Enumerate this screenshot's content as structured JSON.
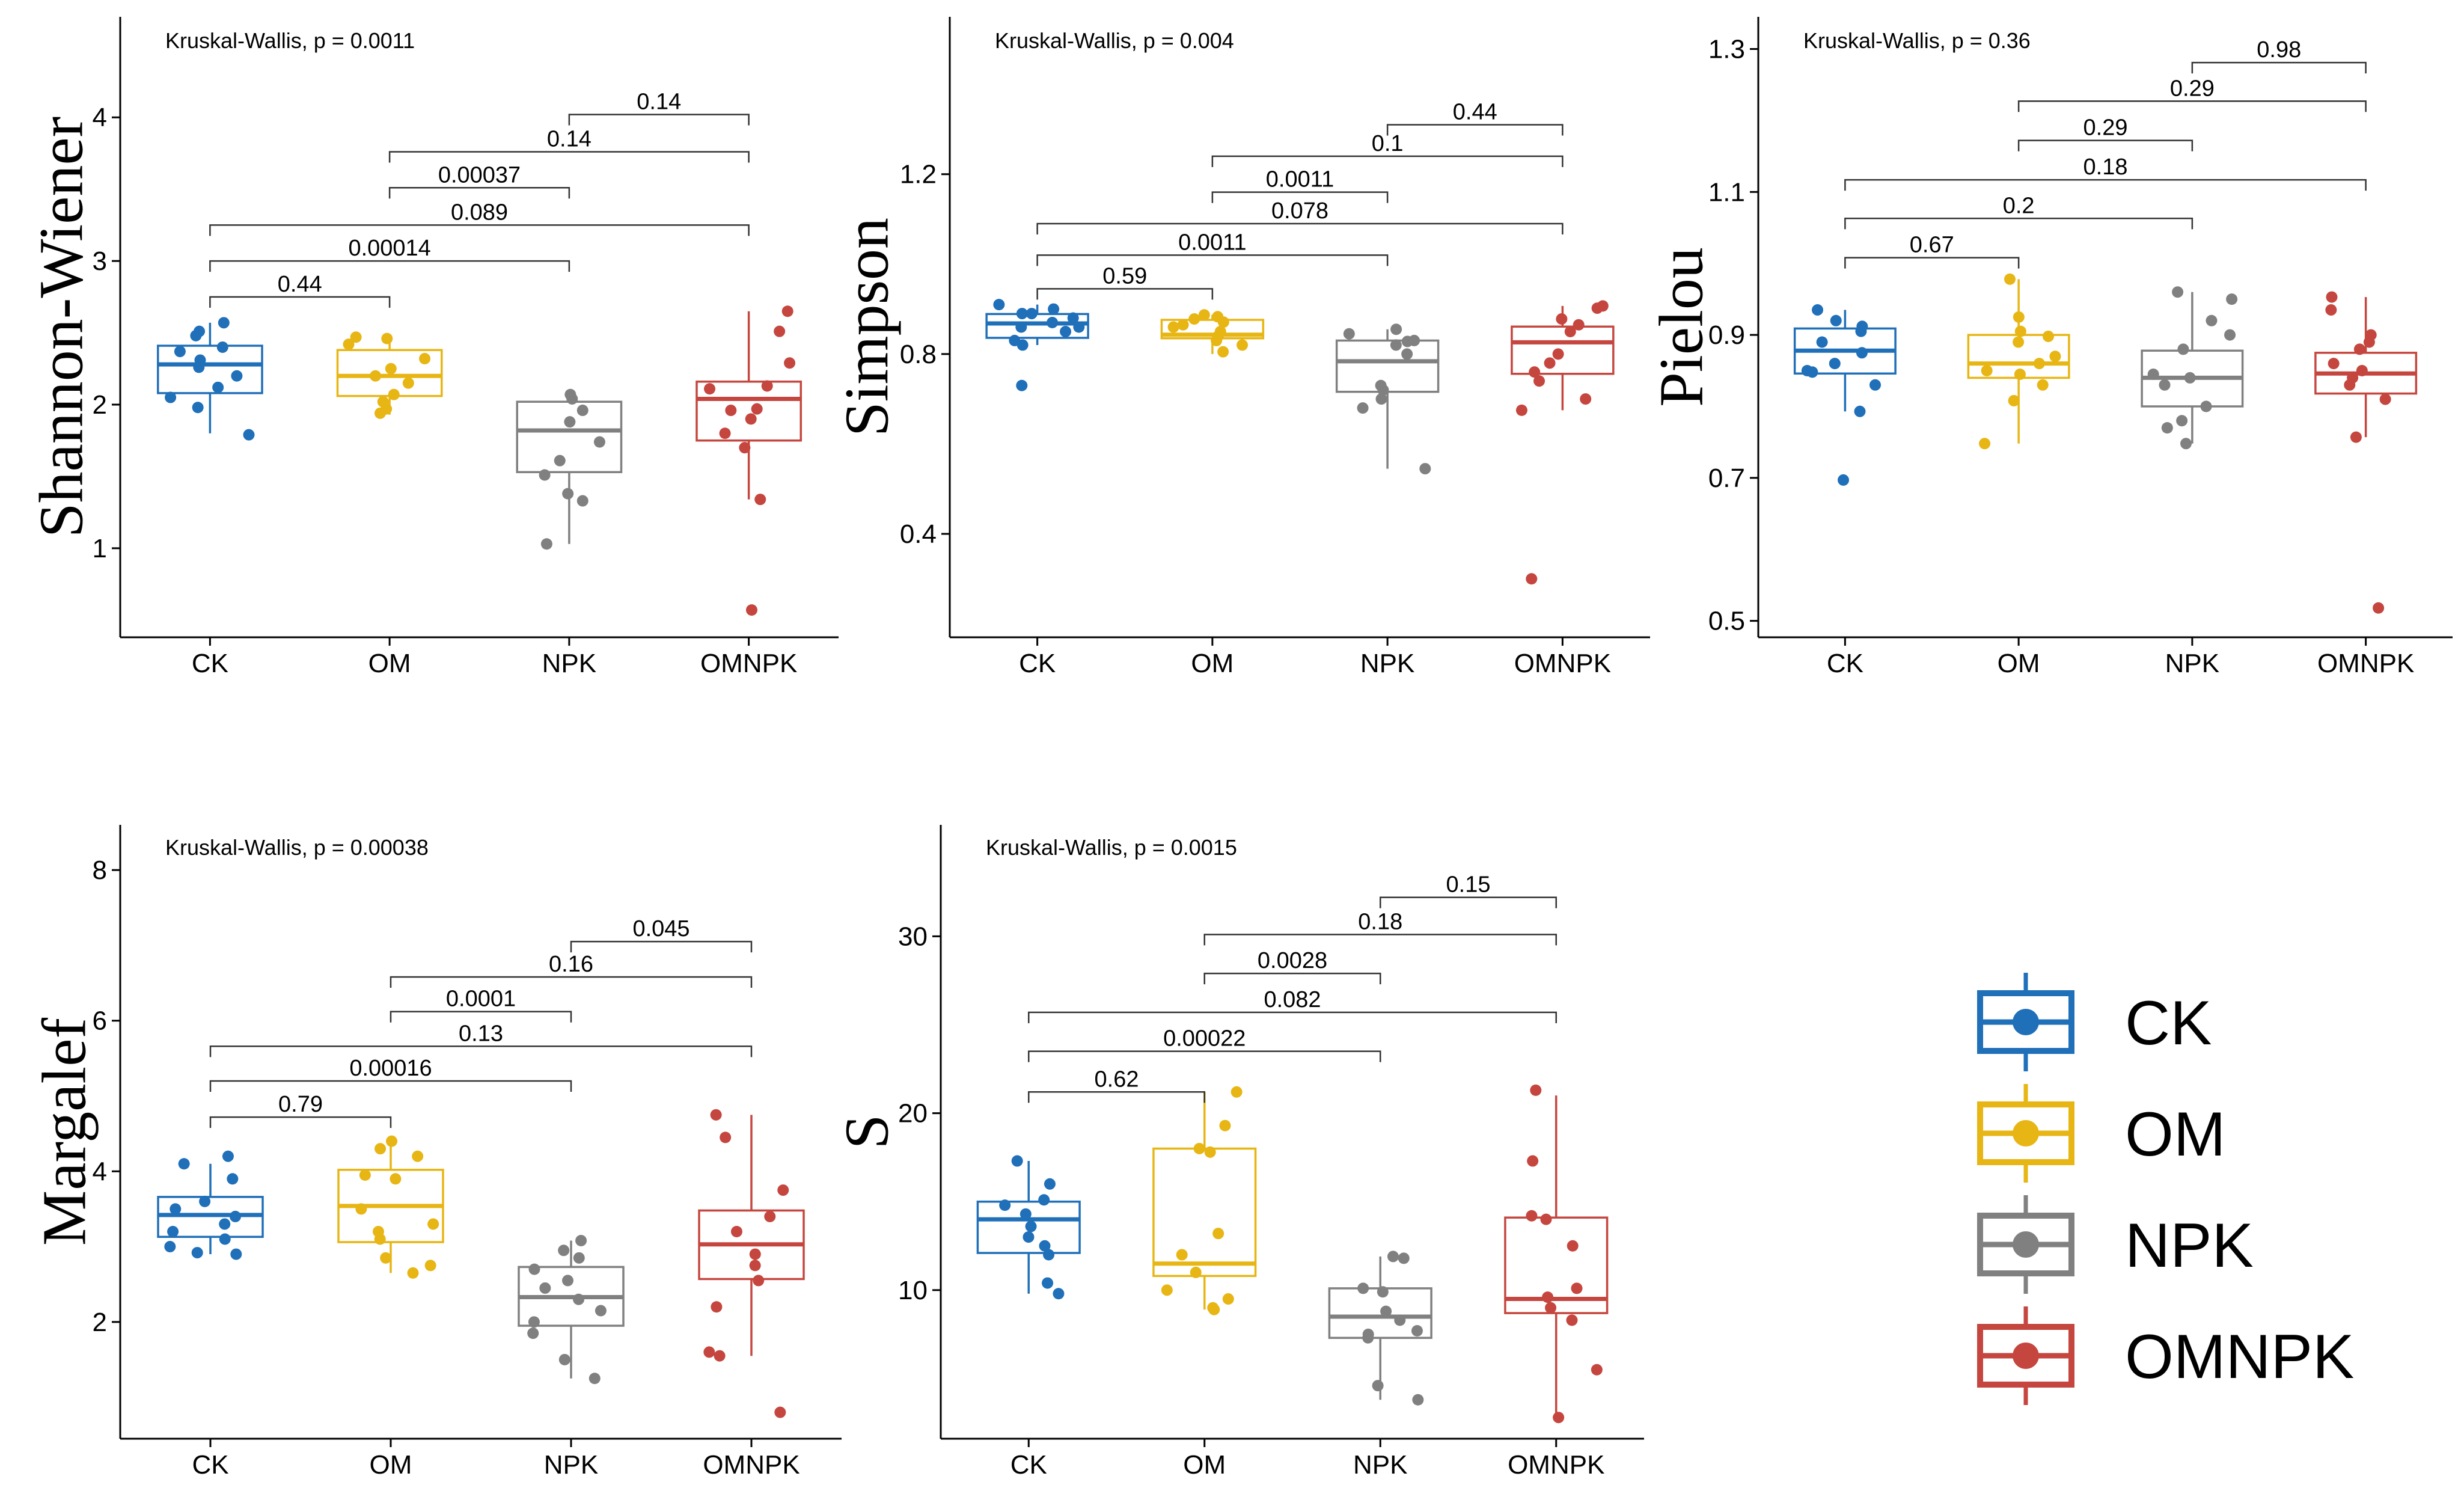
{
  "groups": [
    "CK",
    "OM",
    "NPK",
    "OMNPK"
  ],
  "group_colors": {
    "CK": "#1f6fb9",
    "OM": "#e7b614",
    "NPK": "#808080",
    "OMNPK": "#c5463f"
  },
  "legend": {
    "items": [
      "CK",
      "OM",
      "NPK",
      "OMNPK"
    ]
  },
  "chart_data": [
    {
      "id": "shannon",
      "type": "box",
      "ylabel": "Shannon-Wiener",
      "kruskal": "Kruskal-Wallis, p = 0.0011",
      "ylim": [
        0.38,
        4.7
      ],
      "yticks": [
        1,
        2,
        3,
        4
      ],
      "ytick_labels": [
        "1",
        "2",
        "3",
        "4"
      ],
      "boxes": [
        {
          "group": "CK",
          "q1": 2.08,
          "median": 2.28,
          "q3": 2.41,
          "whisker_low": 1.8,
          "whisker_high": 2.57,
          "points": [
            2.57,
            2.51,
            2.48,
            2.4,
            2.37,
            2.31,
            2.26,
            2.2,
            2.12,
            2.05,
            1.98,
            1.79
          ]
        },
        {
          "group": "OM",
          "q1": 2.06,
          "median": 2.2,
          "q3": 2.38,
          "whisker_low": 1.93,
          "whisker_high": 2.48,
          "points": [
            2.47,
            2.46,
            2.42,
            2.32,
            2.25,
            2.2,
            2.15,
            2.07,
            2.02,
            1.97,
            1.94
          ]
        },
        {
          "group": "NPK",
          "q1": 1.53,
          "median": 1.82,
          "q3": 2.02,
          "whisker_low": 1.03,
          "whisker_high": 2.07,
          "points": [
            2.07,
            2.04,
            1.96,
            1.88,
            1.74,
            1.61,
            1.51,
            1.38,
            1.33,
            1.03
          ]
        },
        {
          "group": "OMNPK",
          "q1": 1.75,
          "median": 2.04,
          "q3": 2.16,
          "whisker_low": 1.34,
          "whisker_high": 2.65,
          "points": [
            2.65,
            2.51,
            2.29,
            2.13,
            2.11,
            1.97,
            1.96,
            1.9,
            1.8,
            1.7,
            1.34,
            0.57
          ]
        }
      ],
      "comparisons": [
        {
          "from": "NPK",
          "to": "OMNPK",
          "y": 4.02,
          "label": "0.14"
        },
        {
          "from": "OM",
          "to": "OMNPK",
          "y": 3.76,
          "label": "0.14"
        },
        {
          "from": "OM",
          "to": "NPK",
          "y": 3.51,
          "label": "0.00037"
        },
        {
          "from": "CK",
          "to": "OMNPK",
          "y": 3.25,
          "label": "0.089"
        },
        {
          "from": "CK",
          "to": "NPK",
          "y": 3.0,
          "label": "0.00014"
        },
        {
          "from": "CK",
          "to": "OM",
          "y": 2.75,
          "label": "0.44"
        }
      ]
    },
    {
      "id": "simpson",
      "type": "box",
      "ylabel": "Simpson",
      "kruskal": "Kruskal-Wallis, p = 0.004",
      "ylim": [
        0.17,
        1.55
      ],
      "yticks": [
        0.4,
        0.8,
        1.2
      ],
      "ytick_labels": [
        "0.4",
        "0.8",
        "1.2"
      ],
      "boxes": [
        {
          "group": "CK",
          "q1": 0.836,
          "median": 0.868,
          "q3": 0.889,
          "whisker_low": 0.82,
          "whisker_high": 0.91,
          "points": [
            0.91,
            0.9,
            0.89,
            0.89,
            0.88,
            0.87,
            0.86,
            0.86,
            0.85,
            0.83,
            0.82,
            0.73
          ]
        },
        {
          "group": "OM",
          "q1": 0.835,
          "median": 0.843,
          "q3": 0.876,
          "whisker_low": 0.8,
          "whisker_high": 0.887,
          "points": [
            0.887,
            0.883,
            0.878,
            0.871,
            0.865,
            0.86,
            0.85,
            0.84,
            0.83,
            0.82,
            0.805
          ]
        },
        {
          "group": "NPK",
          "q1": 0.716,
          "median": 0.784,
          "q3": 0.83,
          "whisker_low": 0.545,
          "whisker_high": 0.855,
          "points": [
            0.855,
            0.845,
            0.83,
            0.828,
            0.82,
            0.8,
            0.73,
            0.72,
            0.7,
            0.68,
            0.545
          ]
        },
        {
          "group": "OMNPK",
          "q1": 0.756,
          "median": 0.826,
          "q3": 0.861,
          "whisker_low": 0.675,
          "whisker_high": 0.907,
          "points": [
            0.907,
            0.902,
            0.878,
            0.865,
            0.85,
            0.8,
            0.78,
            0.76,
            0.74,
            0.7,
            0.675,
            0.3
          ]
        }
      ],
      "comparisons": [
        {
          "from": "NPK",
          "to": "OMNPK",
          "y": 1.31,
          "label": "0.44"
        },
        {
          "from": "OM",
          "to": "OMNPK",
          "y": 1.24,
          "label": "0.1"
        },
        {
          "from": "OM",
          "to": "NPK",
          "y": 1.16,
          "label": "0.0011"
        },
        {
          "from": "CK",
          "to": "OMNPK",
          "y": 1.09,
          "label": "0.078"
        },
        {
          "from": "CK",
          "to": "NPK",
          "y": 1.02,
          "label": "0.0011"
        },
        {
          "from": "CK",
          "to": "OM",
          "y": 0.945,
          "label": "0.59"
        }
      ]
    },
    {
      "id": "pielou",
      "type": "box",
      "ylabel": "Pielou",
      "kruskal": "Kruskal-Wallis, p = 0.36",
      "ylim": [
        0.477,
        1.345
      ],
      "yticks": [
        0.5,
        0.7,
        0.9,
        1.1,
        1.3
      ],
      "ytick_labels": [
        "0.5",
        "0.7",
        "0.9",
        "1.1",
        "1.3"
      ],
      "boxes": [
        {
          "group": "CK",
          "q1": 0.846,
          "median": 0.878,
          "q3": 0.909,
          "whisker_low": 0.793,
          "whisker_high": 0.935,
          "points": [
            0.935,
            0.92,
            0.912,
            0.905,
            0.89,
            0.875,
            0.86,
            0.85,
            0.848,
            0.83,
            0.793,
            0.697
          ]
        },
        {
          "group": "OM",
          "q1": 0.84,
          "median": 0.86,
          "q3": 0.9,
          "whisker_low": 0.748,
          "whisker_high": 0.978,
          "points": [
            0.978,
            0.925,
            0.905,
            0.898,
            0.89,
            0.87,
            0.86,
            0.85,
            0.845,
            0.83,
            0.808,
            0.748
          ]
        },
        {
          "group": "NPK",
          "q1": 0.8,
          "median": 0.84,
          "q3": 0.878,
          "whisker_low": 0.748,
          "whisker_high": 0.96,
          "points": [
            0.96,
            0.95,
            0.92,
            0.9,
            0.88,
            0.845,
            0.84,
            0.83,
            0.8,
            0.78,
            0.77,
            0.748
          ]
        },
        {
          "group": "OMNPK",
          "q1": 0.818,
          "median": 0.846,
          "q3": 0.875,
          "whisker_low": 0.757,
          "whisker_high": 0.953,
          "points": [
            0.953,
            0.935,
            0.9,
            0.89,
            0.88,
            0.86,
            0.85,
            0.84,
            0.83,
            0.81,
            0.757,
            0.518
          ]
        }
      ],
      "comparisons": [
        {
          "from": "NPK",
          "to": "OMNPK",
          "y": 1.281,
          "label": "0.98"
        },
        {
          "from": "OM",
          "to": "OMNPK",
          "y": 1.227,
          "label": "0.29"
        },
        {
          "from": "OM",
          "to": "NPK",
          "y": 1.172,
          "label": "0.29"
        },
        {
          "from": "CK",
          "to": "OMNPK",
          "y": 1.117,
          "label": "0.18"
        },
        {
          "from": "CK",
          "to": "NPK",
          "y": 1.063,
          "label": "0.2"
        },
        {
          "from": "CK",
          "to": "OM",
          "y": 1.008,
          "label": "0.67"
        }
      ]
    },
    {
      "id": "margalef",
      "type": "box",
      "ylabel": "Margalef",
      "kruskal": "Kruskal-Wallis, p = 0.00038",
      "ylim": [
        0.45,
        8.6
      ],
      "yticks": [
        2,
        4,
        6,
        8
      ],
      "ytick_labels": [
        "2",
        "4",
        "6",
        "8"
      ],
      "boxes": [
        {
          "group": "CK",
          "q1": 3.13,
          "median": 3.42,
          "q3": 3.66,
          "whisker_low": 2.9,
          "whisker_high": 4.1,
          "points": [
            4.2,
            4.1,
            3.9,
            3.6,
            3.5,
            3.4,
            3.3,
            3.2,
            3.1,
            3.0,
            2.92,
            2.9
          ]
        },
        {
          "group": "OM",
          "q1": 3.06,
          "median": 3.54,
          "q3": 4.02,
          "whisker_low": 2.65,
          "whisker_high": 4.4,
          "points": [
            4.4,
            4.3,
            4.2,
            3.95,
            3.9,
            3.5,
            3.3,
            3.2,
            3.1,
            2.85,
            2.75,
            2.65
          ]
        },
        {
          "group": "NPK",
          "q1": 1.95,
          "median": 2.33,
          "q3": 2.73,
          "whisker_low": 1.25,
          "whisker_high": 3.08,
          "points": [
            3.08,
            2.95,
            2.85,
            2.7,
            2.55,
            2.45,
            2.3,
            2.15,
            2.0,
            1.85,
            1.5,
            1.25
          ]
        },
        {
          "group": "OMNPK",
          "q1": 2.57,
          "median": 3.03,
          "q3": 3.48,
          "whisker_low": 1.55,
          "whisker_high": 4.75,
          "points": [
            4.75,
            4.45,
            3.75,
            3.4,
            3.2,
            2.9,
            2.75,
            2.55,
            2.2,
            1.6,
            1.55,
            0.8
          ]
        }
      ],
      "comparisons": [
        {
          "from": "NPK",
          "to": "OMNPK",
          "y": 7.05,
          "label": "0.045"
        },
        {
          "from": "OM",
          "to": "OMNPK",
          "y": 6.58,
          "label": "0.16"
        },
        {
          "from": "OM",
          "to": "NPK",
          "y": 6.12,
          "label": "0.0001"
        },
        {
          "from": "CK",
          "to": "OMNPK",
          "y": 5.66,
          "label": "0.13"
        },
        {
          "from": "CK",
          "to": "NPK",
          "y": 5.2,
          "label": "0.00016"
        },
        {
          "from": "CK",
          "to": "OM",
          "y": 4.72,
          "label": "0.79"
        }
      ]
    },
    {
      "id": "s",
      "type": "box",
      "ylabel": "S",
      "kruskal": "Kruskal-Wallis, p = 0.0015",
      "ylim": [
        1.6,
        36.3
      ],
      "yticks": [
        10,
        20,
        30
      ],
      "ytick_labels": [
        "10",
        "20",
        "30"
      ],
      "boxes": [
        {
          "group": "CK",
          "q1": 12.1,
          "median": 14.0,
          "q3": 15.0,
          "whisker_low": 9.8,
          "whisker_high": 17.3,
          "points": [
            17.3,
            16.0,
            15.1,
            14.8,
            14.3,
            13.6,
            13.0,
            12.5,
            12.0,
            10.4,
            9.8
          ]
        },
        {
          "group": "OM",
          "q1": 10.8,
          "median": 11.5,
          "q3": 18.0,
          "whisker_low": 8.9,
          "whisker_high": 21.2,
          "points": [
            21.2,
            19.3,
            18.0,
            17.8,
            13.2,
            12.0,
            11.0,
            10.0,
            9.5,
            9.0,
            8.9
          ]
        },
        {
          "group": "NPK",
          "q1": 7.3,
          "median": 8.5,
          "q3": 10.1,
          "whisker_low": 3.8,
          "whisker_high": 11.9,
          "points": [
            11.9,
            11.8,
            10.1,
            9.9,
            8.8,
            8.3,
            7.7,
            7.5,
            7.3,
            4.6,
            3.8
          ]
        },
        {
          "group": "OMNPK",
          "q1": 8.7,
          "median": 9.5,
          "q3": 14.1,
          "whisker_low": 2.8,
          "whisker_high": 21.0,
          "points": [
            21.3,
            17.3,
            14.2,
            14.0,
            12.5,
            10.1,
            9.6,
            9.0,
            8.3,
            5.5,
            2.8
          ]
        }
      ],
      "comparisons": [
        {
          "from": "NPK",
          "to": "OMNPK",
          "y": 32.2,
          "label": "0.15"
        },
        {
          "from": "OM",
          "to": "OMNPK",
          "y": 30.1,
          "label": "0.18"
        },
        {
          "from": "OM",
          "to": "NPK",
          "y": 27.9,
          "label": "0.0028"
        },
        {
          "from": "CK",
          "to": "OMNPK",
          "y": 25.7,
          "label": "0.082"
        },
        {
          "from": "CK",
          "to": "NPK",
          "y": 23.5,
          "label": "0.00022"
        },
        {
          "from": "CK",
          "to": "OM",
          "y": 21.2,
          "label": "0.62"
        }
      ]
    }
  ]
}
